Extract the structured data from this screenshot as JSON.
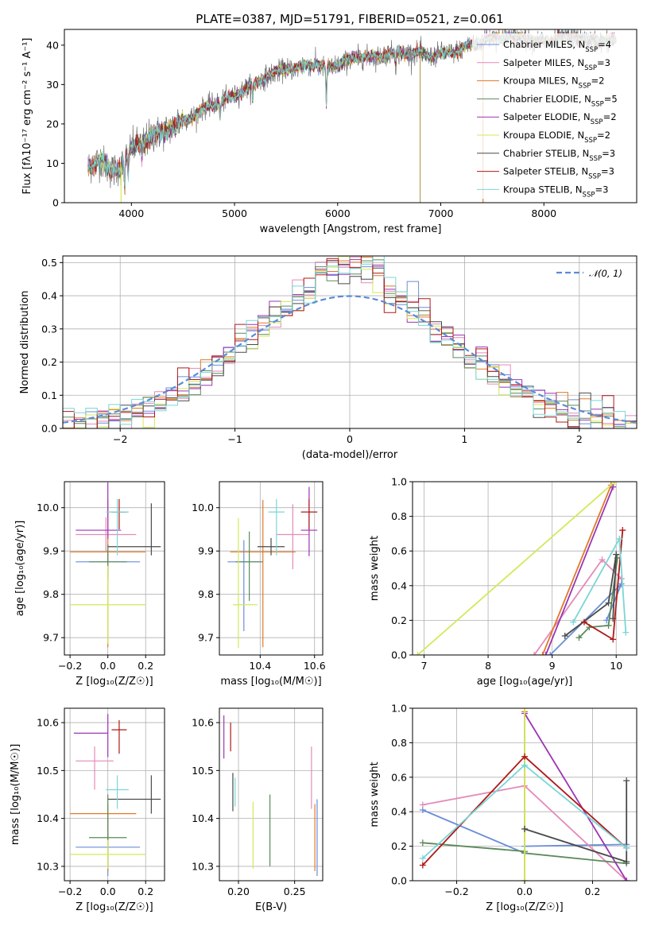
{
  "figure": {
    "title": "PLATE=0387, MJD=51791, FIBERID=0521, z=0.061"
  },
  "colors": {
    "Chabrier MILES": "#6a8ed8",
    "Salpeter MILES": "#e48ab8",
    "Kroupa MILES": "#e07a2a",
    "Chabrier ELODIE": "#5a8a5a",
    "Salpeter ELODIE": "#9c35b4",
    "Kroupa ELODIE": "#d4e85a",
    "Chabrier STELIB": "#4a4a4a",
    "Salpeter STELIB": "#b01818",
    "Kroupa STELIB": "#7ad6d6"
  },
  "chart_data": [
    {
      "id": "spectrum",
      "type": "line",
      "title": "PLATE=0387, MJD=51791, FIBERID=0521, z=0.061",
      "xlabel": "wavelength [Angstrom, rest frame]",
      "ylabel": "Flux [fλ10⁻¹⁷ erg cm⁻² s⁻¹ A⁻¹]",
      "xlim": [
        3350,
        8900
      ],
      "ylim": [
        0,
        44
      ],
      "xticks": [
        4000,
        5000,
        6000,
        7000,
        8000
      ],
      "yticks": [
        0,
        10,
        20,
        30,
        40
      ],
      "grid": false,
      "legend_position": "right",
      "observed_continuum": {
        "x": [
          3580,
          3700,
          3800,
          3900,
          4000,
          4100,
          4200,
          4300,
          4400,
          4500,
          4600,
          4700,
          4800,
          4900,
          5000,
          5100,
          5200,
          5300,
          5400,
          5500,
          5600,
          5700,
          5800,
          5900,
          6000,
          6100,
          6200,
          6300,
          6400,
          6500,
          6600,
          6700,
          6800,
          6900,
          7000,
          7100,
          7200,
          7300,
          7400,
          7500,
          7600,
          7700,
          7800,
          7900,
          8000,
          8100,
          8200,
          8300,
          8400,
          8500,
          8600,
          8700
        ],
        "y": [
          9,
          11,
          8,
          9,
          14,
          15,
          17,
          18,
          19,
          21,
          22,
          24,
          25,
          26,
          27,
          29,
          30,
          32,
          33,
          34,
          34,
          35,
          35,
          34,
          35,
          36,
          37,
          37,
          37,
          38,
          38,
          38,
          38,
          37,
          38,
          38,
          39,
          40,
          41,
          42,
          42,
          42,
          42,
          41,
          41,
          41,
          42,
          42,
          41,
          41,
          41,
          41
        ]
      },
      "legend": [
        {
          "label": "Chabrier MILES, N",
          "sub": "SSP",
          "n": "=4"
        },
        {
          "label": "Salpeter MILES, N",
          "sub": "SSP",
          "n": "=3"
        },
        {
          "label": "Kroupa MILES, N",
          "sub": "SSP",
          "n": "=2"
        },
        {
          "label": "Chabrier ELODIE, N",
          "sub": "SSP",
          "n": "=5"
        },
        {
          "label": "Salpeter ELODIE, N",
          "sub": "SSP",
          "n": "=2"
        },
        {
          "label": "Kroupa ELODIE, N",
          "sub": "SSP",
          "n": "=2"
        },
        {
          "label": "Chabrier STELIB, N",
          "sub": "SSP",
          "n": "=3"
        },
        {
          "label": "Salpeter STELIB, N",
          "sub": "SSP",
          "n": "=3"
        },
        {
          "label": "Kroupa STELIB, N",
          "sub": "SSP",
          "n": "=3"
        }
      ]
    },
    {
      "id": "residuals",
      "type": "line",
      "xlabel": "(data-model)/error",
      "ylabel": "Normed distribution",
      "xlim": [
        -2.5,
        2.5
      ],
      "ylim": [
        0,
        0.52
      ],
      "xticks": [
        -2,
        -1,
        0,
        1,
        2
      ],
      "yticks": [
        0.0,
        0.1,
        0.2,
        0.3,
        0.4,
        0.5
      ],
      "grid": true,
      "legend": "𝒩(0, 1)",
      "legend_position": "top-right",
      "bin_width": 0.1
    },
    {
      "id": "age-vs-z",
      "type": "scatter",
      "xlabel": "Z [log₁₀(Z/Z☉)]",
      "ylabel": "age  [log₁₀(age/yr)]",
      "xlim": [
        -0.23,
        0.3
      ],
      "ylim": [
        9.66,
        10.06
      ],
      "xticks": [
        -0.2,
        0.0,
        0.2
      ],
      "yticks": [
        9.7,
        9.8,
        9.9,
        10.0
      ],
      "grid": true,
      "points": [
        {
          "model": "Chabrier MILES",
          "x": 0.0,
          "y": 9.875,
          "xerr": [
            0.17,
            0.17
          ],
          "yerr": [
            0.03,
            0.03
          ]
        },
        {
          "model": "Salpeter MILES",
          "x": -0.01,
          "y": 9.938,
          "xerr": [
            0.16,
            0.16
          ],
          "yerr": [
            0.04,
            0.04
          ]
        },
        {
          "model": "Kroupa MILES",
          "x": 0.0,
          "y": 9.898,
          "xerr": [
            0.2,
            0.2
          ],
          "yerr": [
            0.22,
            0.12
          ]
        },
        {
          "model": "Chabrier ELODIE",
          "x": 0.0,
          "y": 9.875,
          "xerr": [
            0.1,
            0.1
          ],
          "yerr": [
            0.04,
            0.04
          ]
        },
        {
          "model": "Salpeter ELODIE",
          "x": 0.0,
          "y": 9.948,
          "xerr": [
            0.17,
            0.07
          ],
          "yerr": [
            0.02,
            0.11
          ]
        },
        {
          "model": "Kroupa ELODIE",
          "x": 0.0,
          "y": 9.776,
          "xerr": [
            0.2,
            0.2
          ],
          "yerr": [
            0.09,
            0.09
          ]
        },
        {
          "model": "Chabrier STELIB",
          "x": 0.23,
          "y": 9.91,
          "xerr": [
            0.23,
            0.05
          ],
          "yerr": [
            0.02,
            0.1
          ]
        },
        {
          "model": "Salpeter STELIB",
          "x": 0.06,
          "y": 9.99,
          "xerr": [
            0.04,
            0.04
          ],
          "yerr": [
            0.04,
            0.03
          ]
        },
        {
          "model": "Kroupa STELIB",
          "x": 0.05,
          "y": 9.99,
          "xerr": [
            0.06,
            0.06
          ],
          "yerr": [
            0.1,
            0.03
          ]
        }
      ]
    },
    {
      "id": "age-vs-mass",
      "type": "scatter",
      "xlabel": "mass [log₁₀(M/M☉)]",
      "ylabel": "",
      "xlim": [
        10.25,
        10.63
      ],
      "ylim": [
        9.66,
        10.06
      ],
      "xticks": [
        10.4,
        10.6
      ],
      "yticks": [
        9.7,
        9.8,
        9.9,
        10.0
      ],
      "grid": true,
      "points": [
        {
          "model": "Chabrier MILES",
          "x": 10.34,
          "y": 9.875,
          "xerr": [
            0.06,
            0.06
          ],
          "yerr": [
            0.16,
            0.05
          ]
        },
        {
          "model": "Salpeter MILES",
          "x": 10.52,
          "y": 9.938,
          "xerr": [
            0.06,
            0.06
          ],
          "yerr": [
            0.08,
            0.07
          ]
        },
        {
          "model": "Kroupa MILES",
          "x": 10.41,
          "y": 9.898,
          "xerr": [
            0.12,
            0.12
          ],
          "yerr": [
            0.22,
            0.12
          ]
        },
        {
          "model": "Chabrier ELODIE",
          "x": 10.36,
          "y": 9.875,
          "xerr": [
            0.05,
            0.05
          ],
          "yerr": [
            0.09,
            0.07
          ]
        },
        {
          "model": "Salpeter ELODIE",
          "x": 10.58,
          "y": 9.948,
          "xerr": [
            0.03,
            0.03
          ],
          "yerr": [
            0.06,
            0.1
          ]
        },
        {
          "model": "Kroupa ELODIE",
          "x": 10.32,
          "y": 9.776,
          "xerr": [
            0.02,
            0.07
          ],
          "yerr": [
            0.1,
            0.2
          ]
        },
        {
          "model": "Chabrier STELIB",
          "x": 10.44,
          "y": 9.91,
          "xerr": [
            0.05,
            0.05
          ],
          "yerr": [
            0.02,
            0.02
          ]
        },
        {
          "model": "Salpeter STELIB",
          "x": 10.58,
          "y": 9.99,
          "xerr": [
            0.03,
            0.03
          ],
          "yerr": [
            0.04,
            0.03
          ]
        },
        {
          "model": "Kroupa STELIB",
          "x": 10.46,
          "y": 9.99,
          "xerr": [
            0.03,
            0.03
          ],
          "yerr": [
            0.1,
            0.03
          ]
        }
      ]
    },
    {
      "id": "weight-vs-age",
      "type": "line",
      "xlabel": "age  [log₁₀(age/yr)]",
      "ylabel": "mass weight",
      "xlim": [
        6.82,
        10.32
      ],
      "ylim": [
        0,
        1.0
      ],
      "xticks": [
        7,
        8,
        9,
        10
      ],
      "yticks": [
        0.0,
        0.2,
        0.4,
        0.6,
        0.8,
        1.0
      ],
      "grid": true,
      "series": [
        {
          "model": "Chabrier MILES",
          "x": [
            8.97,
            10.08,
            9.85
          ],
          "y": [
            0.0,
            0.41,
            0.2
          ]
        },
        {
          "model": "Salpeter MILES",
          "x": [
            8.72,
            9.78,
            10.08
          ],
          "y": [
            0.0,
            0.55,
            0.44
          ]
        },
        {
          "model": "Kroupa MILES",
          "x": [
            8.85,
            9.92
          ],
          "y": [
            0.0,
            0.98
          ]
        },
        {
          "model": "Chabrier ELODIE",
          "x": [
            9.42,
            9.58,
            9.88,
            10.02
          ],
          "y": [
            0.1,
            0.16,
            0.17,
            0.56
          ]
        },
        {
          "model": "Salpeter ELODIE",
          "x": [
            8.9,
            9.95
          ],
          "y": [
            0.0,
            0.97
          ]
        },
        {
          "model": "Kroupa ELODIE",
          "x": [
            6.9,
            9.98
          ],
          "y": [
            0.0,
            1.0
          ]
        },
        {
          "model": "Chabrier STELIB",
          "x": [
            9.2,
            9.88,
            10.0,
            9.95
          ],
          "y": [
            0.11,
            0.3,
            0.58,
            0.21
          ]
        },
        {
          "model": "Salpeter STELIB",
          "x": [
            9.5,
            9.95,
            10.1
          ],
          "y": [
            0.19,
            0.09,
            0.72
          ]
        },
        {
          "model": "Kroupa STELIB",
          "x": [
            9.33,
            10.05,
            10.15
          ],
          "y": [
            0.19,
            0.67,
            0.13
          ]
        }
      ]
    },
    {
      "id": "mass-vs-z",
      "type": "scatter",
      "xlabel": "Z [log₁₀(Z/Z☉)]",
      "ylabel": "mass [log₁₀(M/M☉)]",
      "xlim": [
        -0.23,
        0.3
      ],
      "ylim": [
        10.27,
        10.63
      ],
      "xticks": [
        -0.2,
        0.0,
        0.2
      ],
      "yticks": [
        10.3,
        10.4,
        10.5,
        10.6
      ],
      "grid": true,
      "points": [
        {
          "model": "Chabrier MILES",
          "x": 0.0,
          "y": 10.34,
          "xerr": [
            0.17,
            0.17
          ],
          "yerr": [
            0.06,
            0.06
          ]
        },
        {
          "model": "Salpeter MILES",
          "x": -0.07,
          "y": 10.52,
          "xerr": [
            0.1,
            0.1
          ],
          "yerr": [
            0.06,
            0.03
          ]
        },
        {
          "model": "Kroupa MILES",
          "x": 0.0,
          "y": 10.41,
          "xerr": [
            0.2,
            0.15
          ],
          "yerr": [
            0.12,
            0.02
          ]
        },
        {
          "model": "Chabrier ELODIE",
          "x": 0.0,
          "y": 10.36,
          "xerr": [
            0.1,
            0.1
          ],
          "yerr": [
            0.06,
            0.09
          ]
        },
        {
          "model": "Salpeter ELODIE",
          "x": 0.0,
          "y": 10.578,
          "xerr": [
            0.18,
            0.0
          ],
          "yerr": [
            0.05,
            0.04
          ]
        },
        {
          "model": "Kroupa ELODIE",
          "x": 0.0,
          "y": 10.325,
          "xerr": [
            0.2,
            0.2
          ],
          "yerr": [
            0.03,
            0.03
          ]
        },
        {
          "model": "Chabrier STELIB",
          "x": 0.23,
          "y": 10.44,
          "xerr": [
            0.23,
            0.05
          ],
          "yerr": [
            0.03,
            0.05
          ]
        },
        {
          "model": "Salpeter STELIB",
          "x": 0.06,
          "y": 10.585,
          "xerr": [
            0.04,
            0.04
          ],
          "yerr": [
            0.05,
            0.02
          ]
        },
        {
          "model": "Kroupa STELIB",
          "x": 0.05,
          "y": 10.46,
          "xerr": [
            0.06,
            0.06
          ],
          "yerr": [
            0.04,
            0.03
          ]
        }
      ]
    },
    {
      "id": "mass-vs-ebv",
      "type": "scatter",
      "xlabel": "E(B-V)",
      "ylabel": "",
      "xlim": [
        0.183,
        0.275
      ],
      "ylim": [
        10.27,
        10.63
      ],
      "xticks": [
        0.2,
        0.25
      ],
      "yticks": [
        10.3,
        10.4,
        10.5,
        10.6
      ],
      "grid": true,
      "points": [
        {
          "model": "Chabrier MILES",
          "x": 0.27,
          "y": 10.36,
          "yerr": [
            0.08,
            0.08
          ]
        },
        {
          "model": "Salpeter MILES",
          "x": 0.265,
          "y": 10.48,
          "yerr": [
            0.06,
            0.07
          ]
        },
        {
          "model": "Kroupa MILES",
          "x": 0.268,
          "y": 10.36,
          "yerr": [
            0.07,
            0.07
          ]
        },
        {
          "model": "Chabrier ELODIE",
          "x": 0.228,
          "y": 10.37,
          "yerr": [
            0.07,
            0.08
          ]
        },
        {
          "model": "Salpeter ELODIE",
          "x": 0.187,
          "y": 10.565,
          "yerr": [
            0.04,
            0.05
          ]
        },
        {
          "model": "Kroupa ELODIE",
          "x": 0.213,
          "y": 10.365,
          "yerr": [
            0.07,
            0.07
          ]
        },
        {
          "model": "Chabrier STELIB",
          "x": 0.195,
          "y": 10.455,
          "yerr": [
            0.04,
            0.04
          ]
        },
        {
          "model": "Salpeter STELIB",
          "x": 0.193,
          "y": 10.57,
          "yerr": [
            0.03,
            0.03
          ]
        },
        {
          "model": "Kroupa STELIB",
          "x": 0.197,
          "y": 10.455,
          "yerr": [
            0.03,
            0.03
          ]
        }
      ]
    },
    {
      "id": "weight-vs-z",
      "type": "line",
      "xlabel": "Z [log₁₀(Z/Z☉)]",
      "ylabel": "mass weight",
      "xlim": [
        -0.33,
        0.33
      ],
      "ylim": [
        0,
        1.0
      ],
      "xticks": [
        -0.2,
        0.0,
        0.2
      ],
      "yticks": [
        0.0,
        0.2,
        0.4,
        0.6,
        0.8,
        1.0
      ],
      "grid": true,
      "series": [
        {
          "model": "Chabrier MILES",
          "x": [
            -0.3,
            0.0,
            0.0,
            0.3
          ],
          "y": [
            0.41,
            0.16,
            0.2,
            0.21
          ]
        },
        {
          "model": "Salpeter MILES",
          "x": [
            -0.3,
            0.0,
            0.3
          ],
          "y": [
            0.44,
            0.55,
            0.0
          ]
        },
        {
          "model": "Kroupa MILES",
          "x": [
            0.0,
            0.0
          ],
          "y": [
            0.0,
            0.98
          ]
        },
        {
          "model": "Chabrier ELODIE",
          "x": [
            -0.3,
            0.0,
            0.0,
            0.3
          ],
          "y": [
            0.22,
            0.17,
            0.16,
            0.1
          ]
        },
        {
          "model": "Salpeter ELODIE",
          "x": [
            0.0,
            0.3
          ],
          "y": [
            0.97,
            0.0
          ]
        },
        {
          "model": "Kroupa ELODIE",
          "x": [
            0.0,
            0.0
          ],
          "y": [
            0.0,
            1.0
          ]
        },
        {
          "model": "Chabrier STELIB",
          "x": [
            0.0,
            0.3,
            0.3
          ],
          "y": [
            0.3,
            0.11,
            0.58
          ]
        },
        {
          "model": "Salpeter STELIB",
          "x": [
            -0.3,
            0.0,
            0.3
          ],
          "y": [
            0.09,
            0.72,
            0.19
          ]
        },
        {
          "model": "Kroupa STELIB",
          "x": [
            -0.3,
            0.0,
            0.3
          ],
          "y": [
            0.13,
            0.67,
            0.19
          ]
        }
      ]
    }
  ]
}
